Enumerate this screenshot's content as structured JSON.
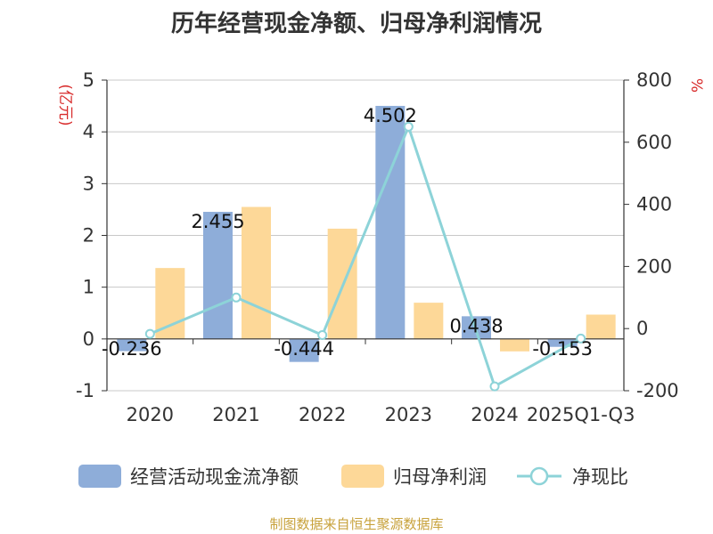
{
  "title": "历年经营现金净额、归母净利润情况",
  "source": "制图数据来自恒生聚源数据库",
  "chart_data": {
    "type": "bar",
    "categories": [
      "2020",
      "2021",
      "2022",
      "2023",
      "2024",
      "2025Q1-Q3"
    ],
    "series": [
      {
        "name": "经营活动现金流净额",
        "type": "bar",
        "axis": "left",
        "color": "#8eadd9",
        "values": [
          -0.236,
          2.455,
          -0.444,
          4.502,
          0.438,
          -0.153
        ],
        "labels": [
          "-0.236",
          "2.455",
          "-0.444",
          "4.502",
          "0.438",
          "-0.153"
        ]
      },
      {
        "name": "归母净利润",
        "type": "bar",
        "axis": "left",
        "color": "#fdd898",
        "values": [
          1.37,
          2.55,
          2.13,
          0.7,
          -0.24,
          0.47
        ]
      },
      {
        "name": "净现比",
        "type": "line",
        "axis": "right",
        "color": "#8dd3d8",
        "values": [
          -17,
          100,
          -21,
          650,
          -186,
          -32
        ]
      }
    ],
    "left_axis": {
      "unit": "(亿元)",
      "ylim": [
        -1,
        5
      ],
      "ticks": [
        -1,
        0,
        1,
        2,
        3,
        4,
        5
      ]
    },
    "right_axis": {
      "unit": "%",
      "ylim": [
        -200,
        800
      ],
      "ticks": [
        -200,
        0,
        200,
        400,
        600,
        800
      ]
    },
    "grid": true,
    "legend_position": "bottom"
  }
}
